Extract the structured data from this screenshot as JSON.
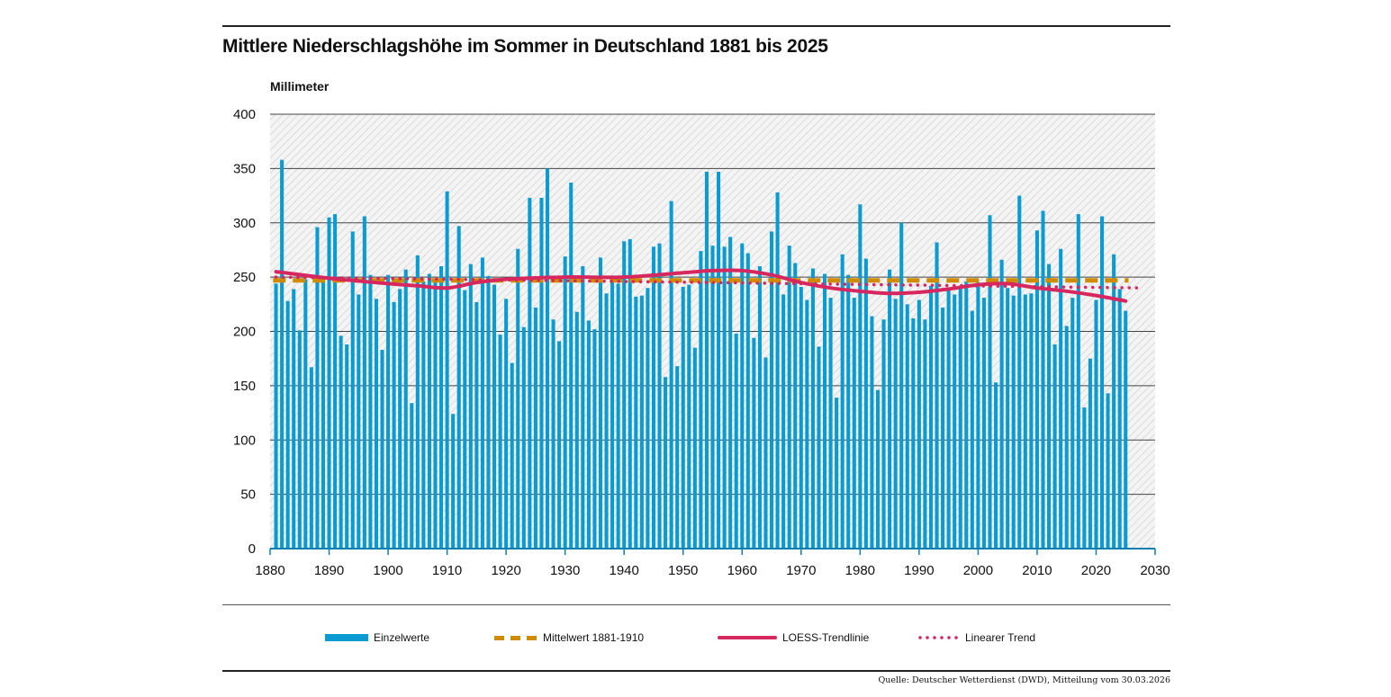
{
  "chart_data": {
    "type": "bar",
    "title": "Mittlere Niederschlagshöhe im Sommer in Deutschland 1881 bis 2025",
    "ylabel": "Millimeter",
    "xlabel": "",
    "ylim": [
      0,
      400
    ],
    "xlim": [
      1880,
      2030
    ],
    "yticks": [
      0,
      50,
      100,
      150,
      200,
      250,
      300,
      350,
      400
    ],
    "xticks": [
      1880,
      1890,
      1900,
      1910,
      1920,
      1930,
      1940,
      1950,
      1960,
      1970,
      1980,
      1990,
      2000,
      2010,
      2020,
      2030
    ],
    "grid": true,
    "legend_position": "bottom",
    "x_start": 1881,
    "series": [
      {
        "name": "Einzelwerte",
        "type": "bar",
        "color": "#0a9bd3",
        "values": [
          244,
          358,
          228,
          239,
          201,
          248,
          167,
          296,
          249,
          305,
          308,
          196,
          188,
          292,
          234,
          306,
          252,
          230,
          183,
          252,
          227,
          239,
          257,
          134,
          270,
          246,
          253,
          248,
          260,
          329,
          124,
          297,
          238,
          262,
          227,
          268,
          251,
          243,
          197,
          230,
          171,
          276,
          204,
          323,
          222,
          323,
          350,
          211,
          191,
          269,
          337,
          218,
          260,
          210,
          202,
          268,
          235,
          246,
          244,
          283,
          285,
          232,
          233,
          240,
          278,
          281,
          158,
          320,
          168,
          241,
          243,
          185,
          274,
          347,
          279,
          347,
          278,
          287,
          198,
          281,
          272,
          194,
          260,
          176,
          292,
          328,
          234,
          279,
          263,
          241,
          229,
          258,
          186,
          253,
          231,
          139,
          271,
          252,
          231,
          317,
          267,
          214,
          146,
          211,
          257,
          230,
          300,
          225,
          212,
          229,
          211,
          242,
          282,
          222,
          238,
          234,
          240,
          246,
          219,
          245,
          231,
          307,
          153,
          266,
          240,
          233,
          325,
          234,
          235,
          293,
          311,
          262,
          188,
          276,
          205,
          231,
          308,
          130,
          175,
          229,
          306,
          143,
          271,
          239,
          219
        ]
      },
      {
        "name": "Mittelwert 1881-1910",
        "type": "line",
        "style": "dashed",
        "color": "#d18b00",
        "value": 247
      },
      {
        "name": "LOESS-Trendlinie",
        "type": "line",
        "style": "solid",
        "color": "#d6275f",
        "x": [
          1881,
          1890,
          1900,
          1905,
          1910,
          1915,
          1920,
          1930,
          1940,
          1950,
          1955,
          1960,
          1965,
          1970,
          1975,
          1980,
          1985,
          1990,
          1995,
          2000,
          2005,
          2010,
          2015,
          2020,
          2025
        ],
        "values": [
          255,
          249,
          244,
          242,
          240,
          245,
          248,
          250,
          250,
          254,
          256,
          256,
          252,
          245,
          240,
          237,
          235,
          236,
          239,
          243,
          244,
          240,
          237,
          233,
          228
        ]
      },
      {
        "name": "Linearer Trend",
        "type": "line",
        "style": "dotted",
        "color": "#d6275f",
        "x": [
          1881,
          2028
        ],
        "values": [
          250,
          240
        ]
      }
    ],
    "legend": [
      "Einzelwerte",
      "Mittelwert 1881-1910",
      "LOESS-Trendlinie",
      "Linearer Trend"
    ]
  },
  "footer": {
    "source": "Quelle: Deutscher Wetterdienst (DWD), Mitteilung vom 30.03.2026"
  }
}
